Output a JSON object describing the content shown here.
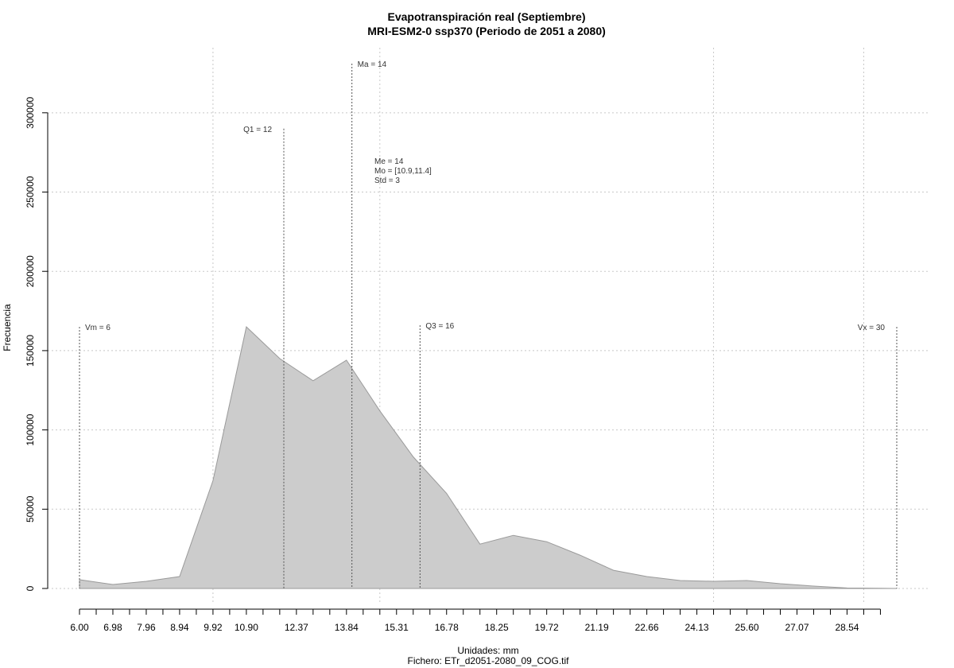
{
  "chart_data": {
    "type": "area",
    "title": "Evapotranspiración real (Septiembre)",
    "subtitle": "MRI-ESM2-0 ssp370 (Periodo de 2051 a 2080)",
    "xlabel": "Unidades: mm",
    "ylabel": "Frecuencia",
    "caption": "Fichero: ETr_d2051-2080_09_COG.tif",
    "xlim": [
      6.0,
      30.0
    ],
    "ylim": [
      0,
      330000
    ],
    "grid": true,
    "x_ticks": [
      "6.00",
      "6.98",
      "7.96",
      "8.94",
      "9.92",
      "10.90",
      "12.37",
      "13.84",
      "15.31",
      "16.78",
      "18.25",
      "19.72",
      "21.19",
      "22.66",
      "24.13",
      "25.60",
      "27.07",
      "28.54"
    ],
    "x_tick_values": [
      6.0,
      6.98,
      7.96,
      8.94,
      9.92,
      10.9,
      12.37,
      13.84,
      15.31,
      16.78,
      18.25,
      19.72,
      21.19,
      22.66,
      24.13,
      25.6,
      27.07,
      28.54
    ],
    "x_minor_ticks": [
      6.49,
      7.47,
      8.45,
      9.43,
      10.41,
      11.39,
      11.88,
      12.86,
      13.35,
      14.33,
      14.82,
      15.8,
      16.29,
      17.27,
      17.76,
      18.74,
      19.23,
      20.21,
      20.7,
      21.68,
      22.17,
      23.15,
      23.64,
      24.62,
      25.11,
      26.09,
      26.58,
      27.56,
      28.05,
      29.03,
      29.52
    ],
    "y_ticks": [
      "0",
      "50000",
      "100000",
      "150000",
      "200000",
      "250000",
      "300000"
    ],
    "y_tick_values": [
      0,
      50000,
      100000,
      150000,
      200000,
      250000,
      300000
    ],
    "x_grid": [
      9.92,
      14.82,
      24.62,
      29.03
    ],
    "series": [
      {
        "x": [
          6.0,
          6.98,
          7.96,
          8.94,
          9.92,
          10.9,
          11.88,
          12.86,
          13.84,
          14.82,
          15.8,
          16.78,
          17.76,
          18.74,
          19.72,
          20.7,
          21.68,
          22.66,
          23.64,
          24.62,
          25.6,
          26.58,
          27.56,
          28.54,
          29.52,
          30.0
        ],
        "values": [
          5500,
          2500,
          4500,
          7500,
          68000,
          165000,
          145000,
          131000,
          144000,
          112000,
          83000,
          60000,
          28000,
          33500,
          29500,
          21000,
          11500,
          7500,
          5000,
          4500,
          5000,
          3000,
          1500,
          300,
          100,
          0
        ]
      }
    ],
    "markers": [
      {
        "label": "Vm = 6",
        "x": 6.0,
        "top": 165000,
        "side": "right"
      },
      {
        "label": "Q1 = 12",
        "x": 12.0,
        "top": 290000,
        "side": "left"
      },
      {
        "label": "Ma = 14",
        "x": 14.0,
        "top": 331000,
        "side": "right"
      },
      {
        "label": "Q3 = 16",
        "x": 16.0,
        "top": 166000,
        "side": "right"
      },
      {
        "label": "Vx = 30",
        "x": 30.0,
        "top": 165000,
        "side": "left"
      }
    ],
    "stats": [
      "Me = 14",
      "Mo = [10.9,11.4]",
      "Std = 3"
    ]
  }
}
